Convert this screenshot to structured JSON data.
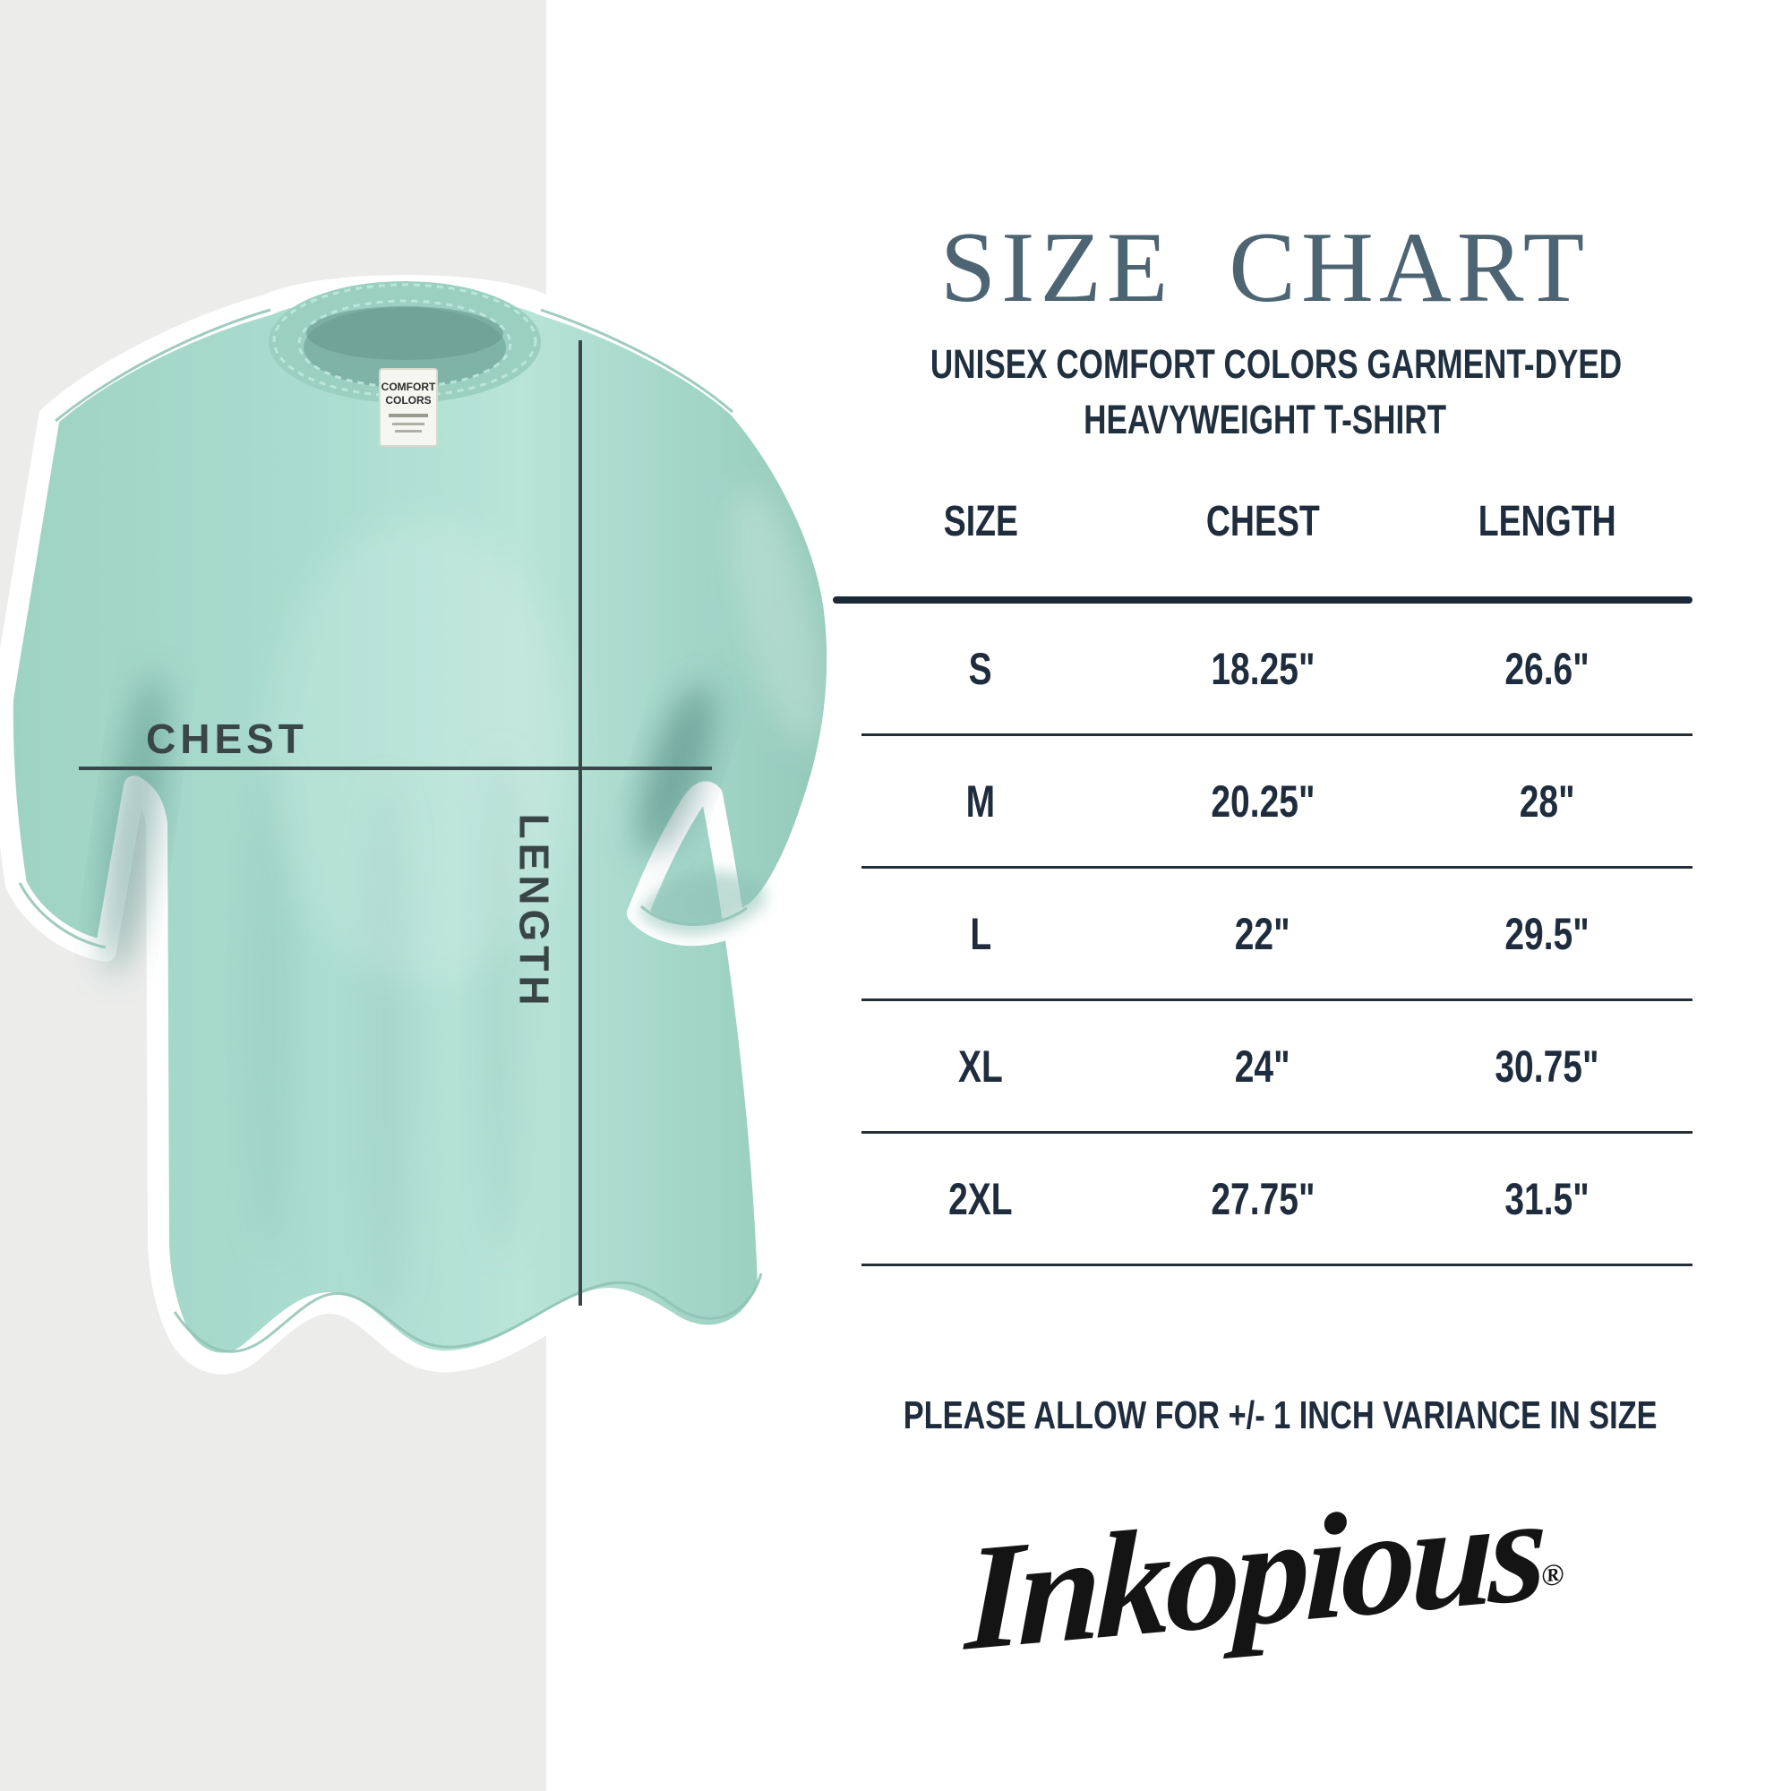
{
  "panel": {
    "title": "SIZE CHART",
    "subtitle_line1": "UNISEX COMFORT COLORS GARMENT-DYED",
    "subtitle_line2": "HEAVYWEIGHT T-SHIRT",
    "note": "PLEASE ALLOW FOR +/- 1 INCH VARIANCE IN SIZE",
    "brand": "Inkopious",
    "brand_mark": "®"
  },
  "diagram": {
    "chest_label": "CHEST",
    "length_label": "LENGTH",
    "tag_line1": "COMFORT",
    "tag_line2": "COLORS"
  },
  "chart_data": {
    "type": "table",
    "title": "SIZE CHART",
    "columns": [
      "SIZE",
      "CHEST",
      "LENGTH"
    ],
    "rows": [
      [
        "S",
        "18.25\"",
        "26.6\""
      ],
      [
        "M",
        "20.25\"",
        "28\""
      ],
      [
        "L",
        "22\"",
        "29.5\""
      ],
      [
        "XL",
        "24\"",
        "30.75\""
      ],
      [
        "2XL",
        "27.75\"",
        "31.5\""
      ]
    ]
  },
  "colors": {
    "background": "#ffffff",
    "side_band": "#ececeb",
    "shirt_mint": "#a5d8c9",
    "shirt_shadow": "#6fa99c",
    "title_slate": "#4d6473",
    "text_navy": "#1e2c3d",
    "measure_line": "#39474a",
    "logo_black": "#141414"
  }
}
